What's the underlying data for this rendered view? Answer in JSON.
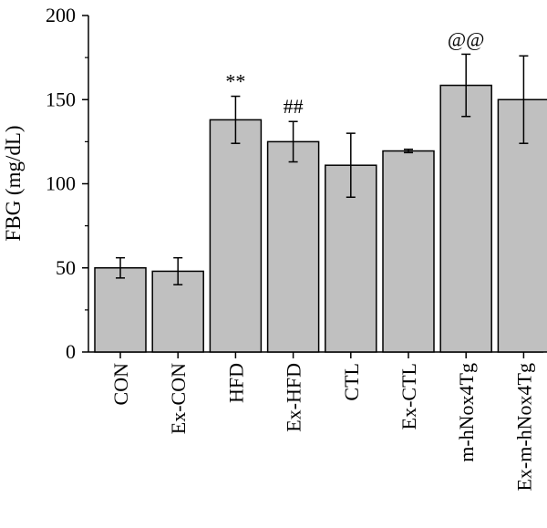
{
  "chart_data": {
    "type": "bar",
    "title": "",
    "xlabel": "",
    "ylabel": "FBG (mg/dL)",
    "ylim": [
      0,
      200
    ],
    "yticks": [
      0,
      50,
      100,
      150,
      200
    ],
    "grid": false,
    "legend": "none",
    "categories": [
      "CON",
      "Ex-CON",
      "HFD",
      "Ex-HFD",
      "CTL",
      "Ex-CTL",
      "m-hNox4Tg",
      "Ex-m-hNox4Tg"
    ],
    "values": [
      50,
      48,
      138,
      125,
      111,
      119.5,
      158.5,
      150
    ],
    "errors": [
      6,
      8,
      14,
      12,
      19,
      1,
      18.5,
      26
    ],
    "annotations": [
      "",
      "",
      "**",
      "##",
      "",
      "",
      "@@",
      ""
    ],
    "colors": {
      "bar_fill": "#c0c0c0",
      "bar_stroke": "#000000"
    }
  }
}
